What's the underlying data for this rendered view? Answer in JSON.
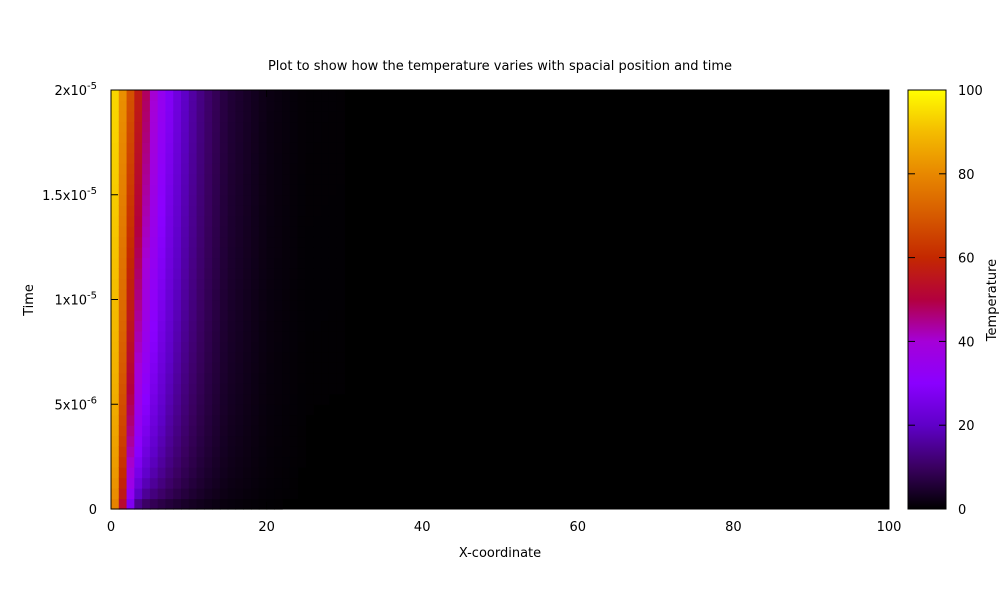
{
  "chart_data": {
    "type": "heatmap",
    "title": "Plot to show how the temperature varies with spacial position and time",
    "xlabel": "X-coordinate",
    "ylabel": "Time",
    "colorbar_label": "Temperature",
    "xlim": [
      0,
      100
    ],
    "ylim": [
      0,
      2e-05
    ],
    "zlim": [
      0,
      100
    ],
    "x_ticks": [
      {
        "value": 0,
        "label": "0"
      },
      {
        "value": 20,
        "label": "20"
      },
      {
        "value": 40,
        "label": "40"
      },
      {
        "value": 60,
        "label": "60"
      },
      {
        "value": 80,
        "label": "80"
      },
      {
        "value": 100,
        "label": "100"
      }
    ],
    "y_ticks": [
      {
        "value": 0,
        "mantissa": "0",
        "exponent": ""
      },
      {
        "value": 5e-06,
        "mantissa": "5x10",
        "exponent": "-6"
      },
      {
        "value": 1e-05,
        "mantissa": "1x10",
        "exponent": "-5"
      },
      {
        "value": 1.5e-05,
        "mantissa": "1.5x10",
        "exponent": "-5"
      },
      {
        "value": 2e-05,
        "mantissa": "2x10",
        "exponent": "-5"
      }
    ],
    "colorbar_ticks": [
      0,
      20,
      40,
      60,
      80,
      100
    ],
    "colormap": "black-blue-red-yellow (gnuplot default palette)",
    "temperature_profile": {
      "x": [
        0,
        1,
        2,
        3,
        4,
        5,
        6,
        7,
        8,
        10,
        12,
        15,
        20,
        25,
        100
      ],
      "values_at_t_max": [
        100,
        88,
        75,
        62,
        52,
        44,
        37,
        31,
        26,
        18,
        12,
        6,
        2,
        0.5,
        0
      ],
      "values_at_t_min": [
        88,
        62,
        28,
        5,
        0,
        0,
        0,
        0,
        0,
        0,
        0,
        0,
        0,
        0,
        0
      ]
    },
    "grid": false
  }
}
